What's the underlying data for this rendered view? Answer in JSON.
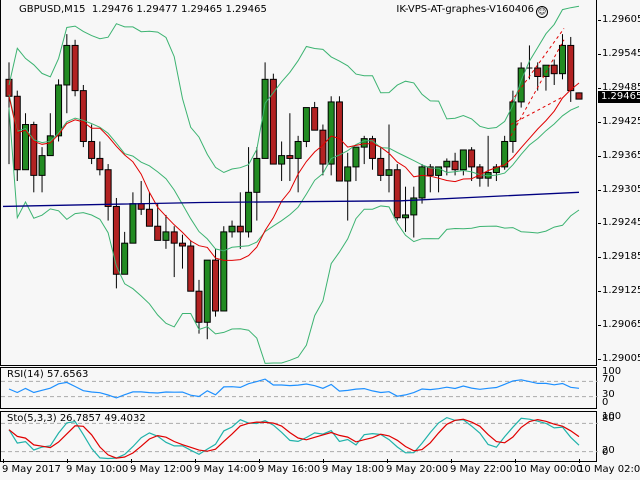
{
  "header": {
    "symbol_line": "GBPUSD,M15  1.29476 1.29477 1.29465 1.29465",
    "expert_name": "IK-VPS-AT-graphes-V160406",
    "expert_icon": "smiley-icon"
  },
  "price_axis": {
    "labels": [
      "1.29605",
      "1.29545",
      "1.29485",
      "1.29425",
      "1.29365",
      "1.29305",
      "1.29245",
      "1.29185",
      "1.29125",
      "1.29065",
      "1.29005"
    ],
    "current_price": "1.29465"
  },
  "rsi": {
    "label": "RSI(14) 57.6563",
    "axis": [
      "100",
      "70",
      "30",
      "0"
    ],
    "color": "#1e90ff"
  },
  "stochastic": {
    "label": "Sto(5,3,3) 26.7857 49.4032",
    "axis": [
      "100",
      "80",
      "20",
      "0"
    ],
    "main_color": "#20b2aa",
    "signal_color": "#e00000"
  },
  "time_axis": {
    "labels": [
      "9 May 2017",
      "9 May 10:00",
      "9 May 12:00",
      "9 May 14:00",
      "9 May 16:00",
      "9 May 18:00",
      "9 May 20:00",
      "9 May 22:00",
      "10 May 00:00",
      "10 May 02:00"
    ]
  },
  "colors": {
    "bull": "#228b22",
    "bear": "#b22222",
    "bands": "#3cb371",
    "ma_red": "#e00000",
    "ma_blue": "#000080",
    "background": "#f7f7f7"
  },
  "chart_data": [
    {
      "type": "candlestick",
      "title": "GBPUSD,M15",
      "ylim": [
        1.29005,
        1.29605
      ],
      "y_ticks": [
        1.29605,
        1.29545,
        1.29485,
        1.29425,
        1.29365,
        1.29305,
        1.29245,
        1.29185,
        1.29125,
        1.29065,
        1.29005
      ],
      "x_tick_labels": [
        "9 May 2017",
        "9 May 10:00",
        "9 May 12:00",
        "9 May 14:00",
        "9 May 16:00",
        "9 May 18:00",
        "9 May 20:00",
        "9 May 22:00",
        "10 May 00:00",
        "10 May 02:00"
      ],
      "last": {
        "open": 1.29476,
        "high": 1.29477,
        "low": 1.29465,
        "close": 1.29465
      },
      "ohlc": [
        [
          1.295,
          1.2953,
          1.2935,
          1.2947
        ],
        [
          1.2947,
          1.2948,
          1.2932,
          1.2934
        ],
        [
          1.2934,
          1.2944,
          1.2934,
          1.2942
        ],
        [
          1.2942,
          1.29425,
          1.293,
          1.2933
        ],
        [
          1.2933,
          1.2938,
          1.293,
          1.29365
        ],
        [
          1.29365,
          1.2944,
          1.29365,
          1.294
        ],
        [
          1.294,
          1.295,
          1.2939,
          1.2949
        ],
        [
          1.2949,
          1.2958,
          1.2944,
          1.2956
        ],
        [
          1.2956,
          1.2957,
          1.2947,
          1.2948
        ],
        [
          1.2948,
          1.2949,
          1.2938,
          1.2939
        ],
        [
          1.2939,
          1.2942,
          1.2935,
          1.2936
        ],
        [
          1.2936,
          1.2939,
          1.2933,
          1.2934
        ],
        [
          1.2934,
          1.2935,
          1.2925,
          1.29275
        ],
        [
          1.29275,
          1.2929,
          1.2913,
          1.29155
        ],
        [
          1.29155,
          1.2923,
          1.29155,
          1.2921
        ],
        [
          1.2921,
          1.293,
          1.2921,
          1.2928
        ],
        [
          1.2928,
          1.2932,
          1.2926,
          1.2927
        ],
        [
          1.2927,
          1.293,
          1.29245,
          1.2924
        ],
        [
          1.2924,
          1.2928,
          1.2922,
          1.29215
        ],
        [
          1.29215,
          1.2926,
          1.292,
          1.2923
        ],
        [
          1.2923,
          1.2924,
          1.2915,
          1.2921
        ],
        [
          1.2921,
          1.29225,
          1.29165,
          1.29205
        ],
        [
          1.29205,
          1.29215,
          1.2913,
          1.29125
        ],
        [
          1.29125,
          1.29145,
          1.2905,
          1.2907
        ],
        [
          1.2907,
          1.2918,
          1.2904,
          1.2918
        ],
        [
          1.2918,
          1.292,
          1.2908,
          1.2909
        ],
        [
          1.2909,
          1.2924,
          1.2909,
          1.2923
        ],
        [
          1.2923,
          1.2925,
          1.2922,
          1.2924
        ],
        [
          1.2924,
          1.293,
          1.292,
          1.2923
        ],
        [
          1.2923,
          1.2938,
          1.2922,
          1.293
        ],
        [
          1.293,
          1.2938,
          1.2925,
          1.2936
        ],
        [
          1.2936,
          1.2953,
          1.2936,
          1.295
        ],
        [
          1.295,
          1.2951,
          1.2936,
          1.2935
        ],
        [
          1.2935,
          1.2939,
          1.2932,
          1.29365
        ],
        [
          1.29365,
          1.2944,
          1.2932,
          1.2936
        ],
        [
          1.2936,
          1.294,
          1.293,
          1.2939
        ],
        [
          1.2939,
          1.2944,
          1.2938,
          1.2945
        ],
        [
          1.2945,
          1.2946,
          1.2942,
          1.2941
        ],
        [
          1.2941,
          1.2942,
          1.2933,
          1.2935
        ],
        [
          1.2935,
          1.2947,
          1.2933,
          1.2946
        ],
        [
          1.2946,
          1.2947,
          1.2932,
          1.2932
        ],
        [
          1.2932,
          1.2937,
          1.2925,
          1.29345
        ],
        [
          1.29345,
          1.2938,
          1.2932,
          1.2938
        ],
        [
          1.2938,
          1.294,
          1.2935,
          1.29395
        ],
        [
          1.29395,
          1.294,
          1.2934,
          1.2936
        ],
        [
          1.2936,
          1.2938,
          1.2932,
          1.2933
        ],
        [
          1.2933,
          1.2942,
          1.293,
          1.2934
        ],
        [
          1.2934,
          1.2935,
          1.2925,
          1.29255
        ],
        [
          1.29255,
          1.2931,
          1.2923,
          1.2926
        ],
        [
          1.2926,
          1.2931,
          1.2922,
          1.2929
        ],
        [
          1.2929,
          1.2935,
          1.2928,
          1.29345
        ],
        [
          1.29345,
          1.2935,
          1.293,
          1.2933
        ],
        [
          1.2933,
          1.2934,
          1.293,
          1.29345
        ],
        [
          1.29345,
          1.2936,
          1.2933,
          1.29355
        ],
        [
          1.29355,
          1.2937,
          1.2933,
          1.2934
        ],
        [
          1.2934,
          1.29375,
          1.2933,
          1.29375
        ],
        [
          1.29375,
          1.2938,
          1.2932,
          1.29345
        ],
        [
          1.29345,
          1.2935,
          1.2931,
          1.29325
        ],
        [
          1.29325,
          1.294,
          1.2931,
          1.29335
        ],
        [
          1.29335,
          1.2935,
          1.2932,
          1.29345
        ],
        [
          1.29345,
          1.294,
          1.2934,
          1.2939
        ],
        [
          1.2939,
          1.2948,
          1.2937,
          1.2946
        ],
        [
          1.2946,
          1.2953,
          1.2945,
          1.2952
        ],
        [
          1.2952,
          1.2956,
          1.295,
          1.2952
        ],
        [
          1.2952,
          1.2953,
          1.2948,
          1.29505
        ],
        [
          1.29505,
          1.29525,
          1.2948,
          1.29525
        ],
        [
          1.29525,
          1.29535,
          1.2949,
          1.2951
        ],
        [
          1.2951,
          1.2958,
          1.295,
          1.2956
        ],
        [
          1.2956,
          1.29575,
          1.2946,
          1.2948
        ],
        [
          1.29476,
          1.29477,
          1.29465,
          1.29465
        ]
      ],
      "indicators": [
        "Bollinger Bands (green)",
        "Moving Average (red)",
        "Moving Average (navy)"
      ]
    },
    {
      "type": "line",
      "title": "RSI(14) 57.6563",
      "ylim": [
        0,
        100
      ],
      "levels": [
        70,
        30
      ],
      "last": 57.6563
    },
    {
      "type": "line",
      "title": "Sto(5,3,3) 26.7857 49.4032",
      "ylim": [
        0,
        100
      ],
      "levels": [
        80,
        20
      ],
      "series": [
        {
          "name": "%K",
          "last": 26.7857
        },
        {
          "name": "%D",
          "last": 49.4032
        }
      ]
    }
  ]
}
